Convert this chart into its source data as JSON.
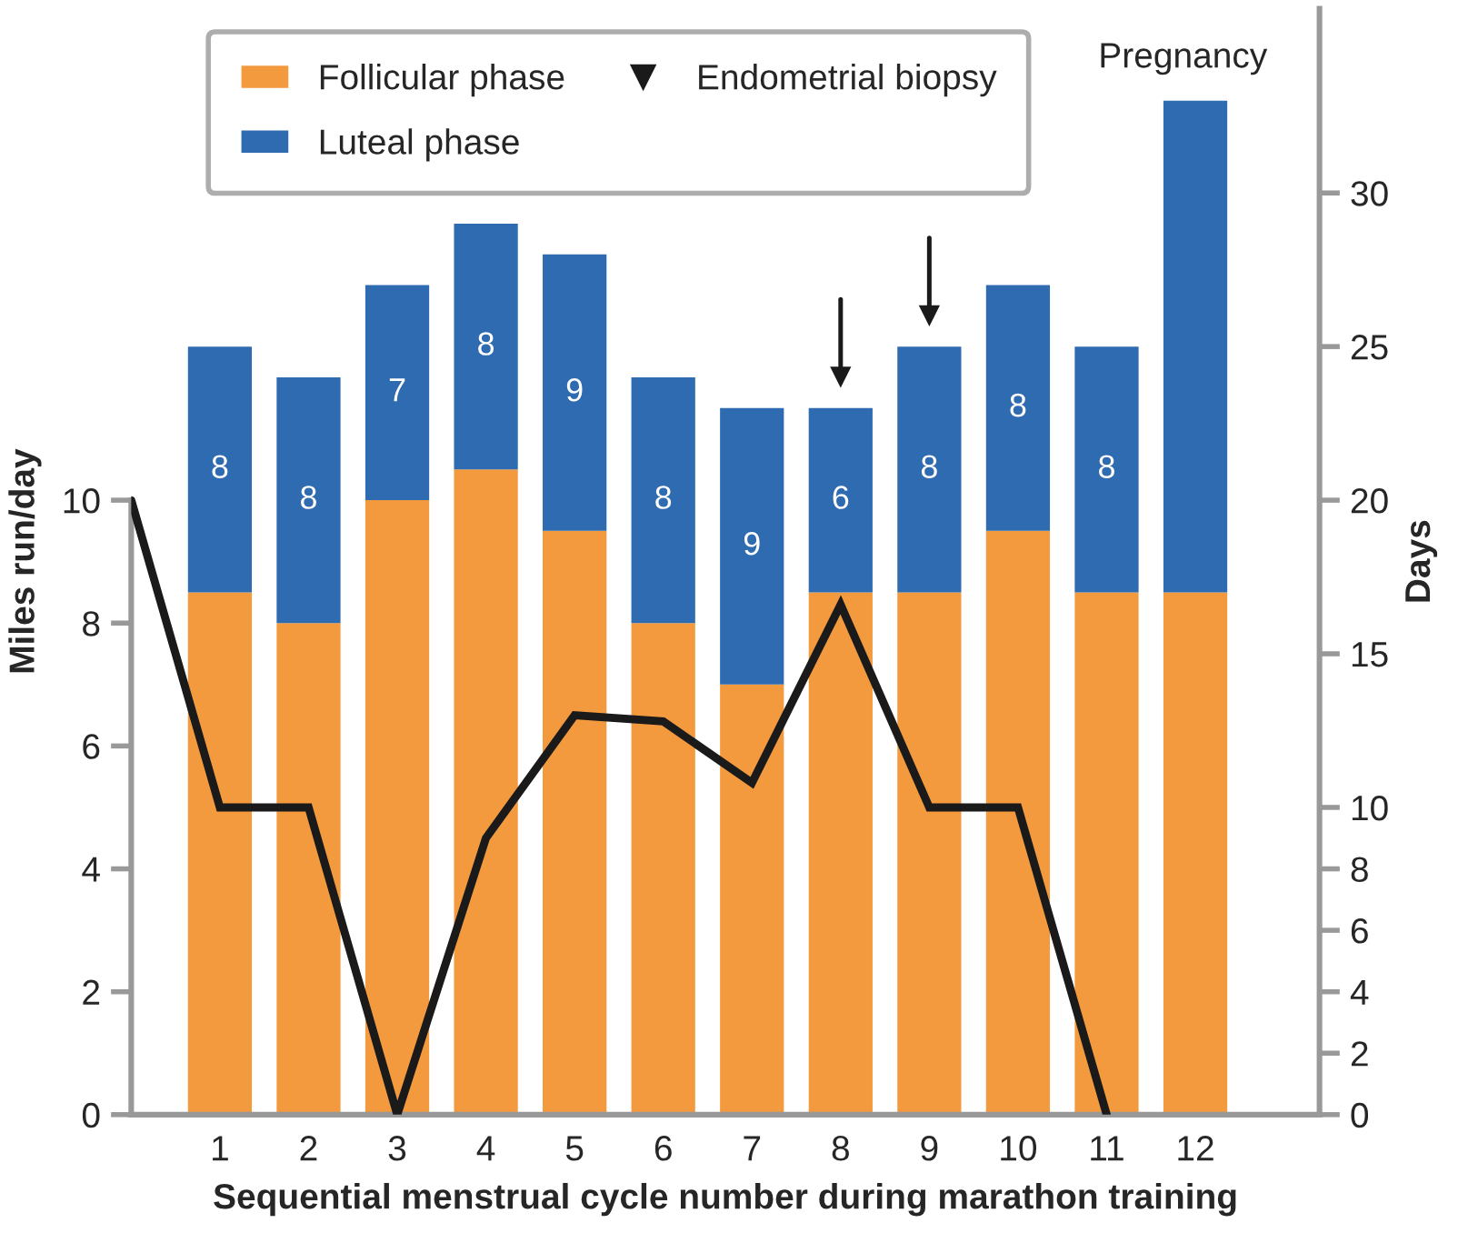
{
  "chart_data": {
    "type": "bar",
    "stacked": true,
    "xlabel": "Sequential menstrual cycle number during marathon training",
    "ylabel": "Miles run/day",
    "y2label": "Days",
    "x": [
      1,
      2,
      3,
      4,
      5,
      6,
      7,
      8,
      9,
      10,
      11,
      12
    ],
    "xlim": [
      0,
      13.4
    ],
    "xticks": [
      1,
      2,
      3,
      4,
      5,
      6,
      7,
      8,
      9,
      10,
      11,
      12
    ],
    "ylim": [
      0,
      18
    ],
    "yticks": [
      0,
      2,
      4,
      6,
      8,
      10
    ],
    "y2lim": [
      0,
      36
    ],
    "y2ticks": [
      0,
      2,
      4,
      6,
      8,
      10,
      15,
      20,
      25,
      30
    ],
    "series": [
      {
        "name": "Follicular phase",
        "color": "#f39a3f",
        "axis": "y2",
        "values": [
          17,
          16,
          20,
          21,
          19,
          16,
          14,
          17,
          17,
          19,
          17,
          17
        ]
      },
      {
        "name": "Luteal phase",
        "color": "#2f6bb0",
        "axis": "y2",
        "values": [
          8,
          8,
          7,
          8,
          9,
          8,
          9,
          6,
          8,
          8,
          8,
          16
        ],
        "value_labels": [
          "8",
          "8",
          "7",
          "8",
          "9",
          "8",
          "9",
          "6",
          "8",
          "8",
          "8",
          null
        ]
      },
      {
        "type": "line",
        "color": "#1a1a1a",
        "x": [
          0,
          1,
          2,
          3,
          4,
          5,
          6,
          7,
          8,
          9,
          10,
          11
        ],
        "values": [
          10,
          5,
          5,
          0,
          4.5,
          6.5,
          6.4,
          5.4,
          8.3,
          5,
          5,
          0
        ]
      },
      {
        "type": "scatter",
        "name": "Endometrial biopsy",
        "color": "#1a1a1a",
        "axis": "y2",
        "x": [
          8,
          9
        ],
        "values": [
          24,
          26
        ]
      }
    ],
    "annotations": [
      "Pregnancy"
    ],
    "legend": "top left",
    "grid": false
  }
}
